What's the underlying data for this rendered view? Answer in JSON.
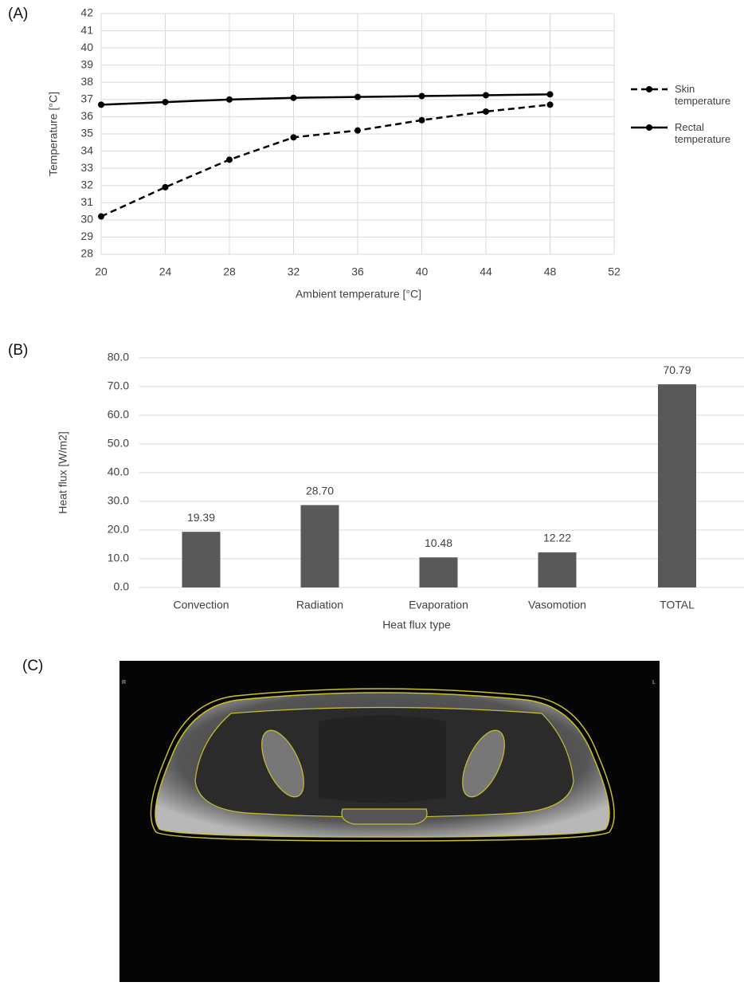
{
  "chart_data": [
    {
      "type": "line",
      "panel_label": "(A)",
      "x_label": "Ambient temperature [°C]",
      "y_label": "Temperature [°C]",
      "x": [
        20,
        24,
        28,
        32,
        36,
        40,
        44,
        48
      ],
      "series": [
        {
          "name": "Skin temperature",
          "color": "#000000",
          "dash": "dashed",
          "values": [
            30.2,
            31.9,
            33.5,
            34.8,
            35.2,
            35.8,
            36.3,
            36.7
          ]
        },
        {
          "name": "Rectal temperature",
          "color": "#000000",
          "dash": "solid",
          "values": [
            36.7,
            36.85,
            37.0,
            37.1,
            37.15,
            37.2,
            37.25,
            37.3
          ]
        }
      ],
      "xlim": [
        20,
        52
      ],
      "xticks": [
        20,
        24,
        28,
        32,
        36,
        40,
        44,
        48,
        52
      ],
      "ylim": [
        28,
        42
      ],
      "yticks": [
        28,
        29,
        30,
        31,
        32,
        33,
        34,
        35,
        36,
        37,
        38,
        39,
        40,
        41,
        42
      ],
      "grid": true,
      "legend": "right"
    },
    {
      "type": "bar",
      "panel_label": "(B)",
      "x_label": "Heat flux type",
      "y_label": "Heat flux [W/m2]",
      "categories": [
        "Convection",
        "Radiation",
        "Evaporation",
        "Vasomotion",
        "TOTAL"
      ],
      "values": [
        19.39,
        28.7,
        10.48,
        12.22,
        70.79
      ],
      "value_labels": [
        "19.39",
        "28.70",
        "10.48",
        "12.22",
        "70.79"
      ],
      "color": "#595959",
      "ylim": [
        0,
        80
      ],
      "yticks": [
        {
          "value": 0,
          "label": "0.0"
        },
        {
          "value": 10,
          "label": "10.0"
        },
        {
          "value": 20,
          "label": "20.0"
        },
        {
          "value": 30,
          "label": "30.0"
        },
        {
          "value": 40,
          "label": "40.0"
        },
        {
          "value": 50,
          "label": "50.0"
        },
        {
          "value": 60,
          "label": "60.0"
        },
        {
          "value": 70,
          "label": "70.0"
        },
        {
          "value": 80,
          "label": "80.0"
        }
      ],
      "grid": true
    }
  ],
  "image_panel": {
    "panel_label": "(C)",
    "left_marker": "R",
    "right_marker": "L"
  }
}
